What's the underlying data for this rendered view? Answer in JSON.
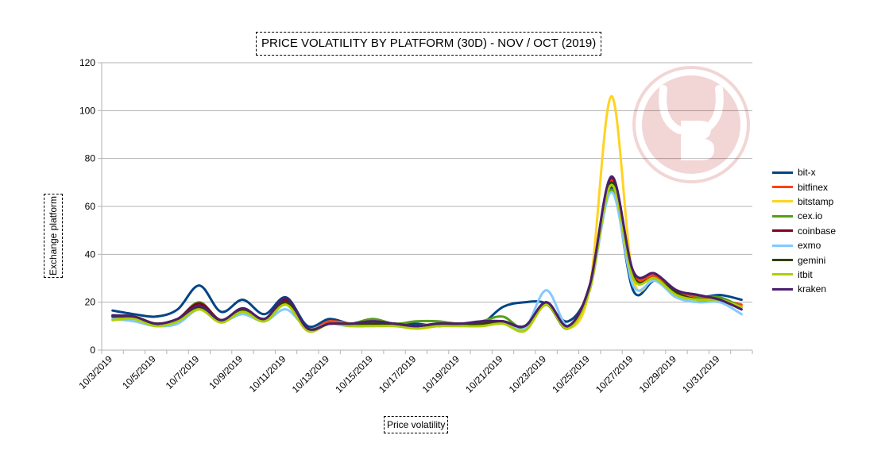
{
  "chart_data": {
    "type": "line",
    "title": "PRICE VOLATILITY BY PLATFORM (30D) - NOV / OCT (2019)",
    "xlabel": "Price volatility",
    "ylabel": "Exchange platform",
    "ylim": [
      0,
      120
    ],
    "yticks": [
      "0",
      "20",
      "40",
      "60",
      "80",
      "100",
      "120"
    ],
    "grid": true,
    "legend": "right",
    "categories": [
      "10/3/2019",
      "10/4/2019",
      "10/5/2019",
      "10/6/2019",
      "10/7/2019",
      "10/8/2019",
      "10/9/2019",
      "10/10/2019",
      "10/11/2019",
      "10/12/2019",
      "10/13/2019",
      "10/14/2019",
      "10/15/2019",
      "10/16/2019",
      "10/17/2019",
      "10/18/2019",
      "10/19/2019",
      "10/20/2019",
      "10/21/2019",
      "10/22/2019",
      "10/23/2019",
      "10/24/2019",
      "10/25/2019",
      "10/26/2019",
      "10/27/2019",
      "10/28/2019",
      "10/29/2019",
      "10/30/2019",
      "10/31/2019",
      "11/1/2019"
    ],
    "xtick_labels": [
      "10/3/2019",
      "",
      "10/5/2019",
      "",
      "10/7/2019",
      "",
      "10/9/2019",
      "",
      "10/11/2019",
      "",
      "10/13/2019",
      "",
      "10/15/2019",
      "",
      "10/17/2019",
      "",
      "10/19/2019",
      "",
      "10/21/2019",
      "",
      "10/23/2019",
      "",
      "10/25/2019",
      "",
      "10/27/2019",
      "",
      "10/29/2019",
      "",
      "10/31/2019",
      ""
    ],
    "series": [
      {
        "name": "bit-x",
        "color": "#004586",
        "values": [
          16.5,
          15,
          14,
          17,
          27,
          16,
          21,
          15,
          22,
          10,
          13,
          11,
          12,
          11,
          11,
          10,
          11,
          11,
          18,
          20,
          19.5,
          12,
          26,
          68,
          25,
          29,
          24,
          22,
          23,
          21
        ]
      },
      {
        "name": "bitfinex",
        "color": "#ff420e",
        "values": [
          14,
          14,
          11,
          13,
          19.5,
          12.5,
          17,
          13,
          20,
          9,
          12,
          11,
          11,
          11,
          10,
          11,
          11,
          11,
          12,
          10,
          20,
          10,
          27,
          71,
          32,
          31,
          25,
          22,
          21,
          19
        ]
      },
      {
        "name": "bitstamp",
        "color": "#ffd320",
        "values": [
          13,
          14,
          11,
          12,
          18,
          12,
          16,
          12,
          19,
          8,
          11,
          11,
          10,
          11,
          9,
          10,
          11,
          10,
          12,
          8,
          19,
          9,
          26,
          106,
          30,
          30,
          24,
          21,
          20,
          18
        ]
      },
      {
        "name": "cex.io",
        "color": "#579d1c",
        "values": [
          14,
          13.5,
          11,
          13,
          20,
          12.5,
          17,
          13,
          20,
          9,
          11,
          11,
          13,
          11,
          12,
          12,
          11,
          12,
          14,
          9,
          19,
          10,
          26,
          67,
          30,
          30,
          22,
          22,
          22,
          18
        ]
      },
      {
        "name": "coinbase",
        "color": "#7e0021",
        "values": [
          14.5,
          14,
          11,
          13,
          19.5,
          12.5,
          17,
          13,
          21,
          9,
          11,
          11,
          12,
          11,
          10,
          11,
          11,
          11,
          12,
          10,
          20,
          10,
          27,
          72,
          33,
          32,
          25,
          23,
          21,
          18
        ]
      },
      {
        "name": "exmo",
        "color": "#83caff",
        "values": [
          13,
          12,
          10,
          11,
          17,
          12,
          15,
          12,
          17,
          9,
          11,
          10,
          12,
          10,
          10,
          11,
          10,
          11,
          12,
          9,
          25,
          10,
          25,
          66,
          27,
          29,
          22,
          20,
          20,
          15
        ]
      },
      {
        "name": "gemini",
        "color": "#314004",
        "values": [
          14,
          14,
          11,
          13,
          18,
          12.5,
          17,
          13,
          20,
          9,
          11,
          11,
          11,
          11,
          10,
          11,
          11,
          11,
          12,
          10,
          19,
          9,
          27,
          70,
          31,
          30,
          24,
          21,
          21,
          17
        ]
      },
      {
        "name": "itbit",
        "color": "#aecf00",
        "values": [
          12.5,
          13,
          10,
          12,
          17,
          11.5,
          16,
          12,
          19,
          8,
          11,
          10,
          10,
          10,
          9,
          10,
          10,
          10,
          11,
          8,
          19,
          9,
          25,
          69,
          30,
          30,
          23,
          21,
          21,
          18
        ]
      },
      {
        "name": "kraken",
        "color": "#4b1f6f",
        "values": [
          14.5,
          14,
          11,
          13,
          18.5,
          12.5,
          17.5,
          13,
          21.5,
          9,
          11,
          11,
          12,
          11,
          10,
          11,
          11,
          12,
          12,
          10,
          20,
          10,
          27,
          72.5,
          33,
          32,
          25,
          23,
          21,
          17
        ]
      }
    ]
  }
}
